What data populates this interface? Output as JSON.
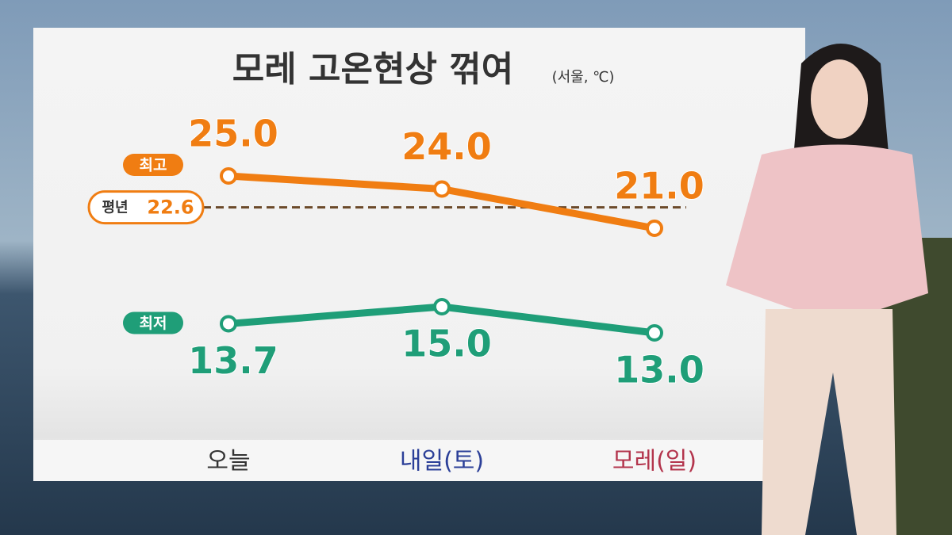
{
  "chart_data": {
    "type": "line",
    "title": "모레 고온현상 꺾여",
    "subtitle": "(서울, ℃)",
    "categories": [
      "오늘",
      "내일(토)",
      "모레(일)"
    ],
    "category_colors": [
      "#333333",
      "#2b3f98",
      "#b3344c"
    ],
    "series": [
      {
        "name": "최고",
        "color": "#f07d12",
        "values": [
          25.0,
          24.0,
          21.0
        ],
        "value_labels": [
          "25.0",
          "24.0",
          "21.0"
        ]
      },
      {
        "name": "최저",
        "color": "#1f9e78",
        "values": [
          13.7,
          15.0,
          13.0
        ],
        "value_labels": [
          "13.7",
          "15.0",
          "13.0"
        ]
      }
    ],
    "reference": {
      "name": "평년",
      "value": 22.6,
      "color": "#f07d12"
    }
  }
}
